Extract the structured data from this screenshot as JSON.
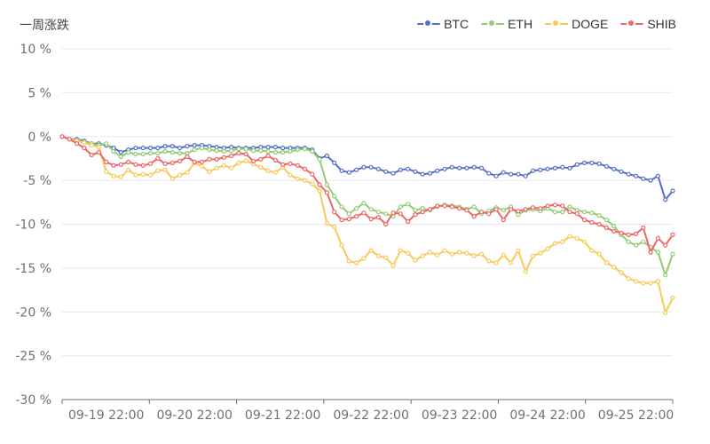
{
  "chart_data": {
    "type": "line",
    "title": "一周涨跌",
    "ylim": [
      -30,
      10
    ],
    "y_ticks": [
      "10 %",
      "5 %",
      "0 %",
      "-5 %",
      "-10 %",
      "-15 %",
      "-20 %",
      "-25 %",
      "-30 %"
    ],
    "y_tick_values": [
      10,
      5,
      0,
      -5,
      -10,
      -15,
      -20,
      -25,
      -30
    ],
    "x_tick_labels": [
      "09-19 22:00",
      "09-20 22:00",
      "09-21 22:00",
      "09-22 22:00",
      "09-23 22:00",
      "09-24 22:00",
      "09-25 22:00"
    ],
    "x_tick_index": [
      6,
      18,
      30,
      42,
      54,
      66,
      78
    ],
    "point_count": 84,
    "grid": true,
    "legend_position": "top-right",
    "series": [
      {
        "name": "BTC",
        "color": "#5470c6",
        "values": [
          0,
          -0.3,
          -0.3,
          -0.5,
          -0.8,
          -0.8,
          -1.0,
          -1.3,
          -1.8,
          -1.5,
          -1.3,
          -1.3,
          -1.3,
          -1.3,
          -1.1,
          -1.1,
          -1.3,
          -1.1,
          -1.0,
          -1.0,
          -1.1,
          -1.2,
          -1.3,
          -1.2,
          -1.3,
          -1.3,
          -1.3,
          -1.2,
          -1.2,
          -1.2,
          -1.3,
          -1.3,
          -1.3,
          -1.3,
          -1.5,
          -2.5,
          -2.2,
          -3.0,
          -3.9,
          -4.1,
          -3.8,
          -3.5,
          -3.5,
          -3.7,
          -4.0,
          -4.2,
          -3.8,
          -3.7,
          -4.0,
          -4.3,
          -4.2,
          -3.9,
          -3.7,
          -3.5,
          -3.6,
          -3.6,
          -3.5,
          -3.6,
          -4.2,
          -4.5,
          -4.1,
          -4.3,
          -4.3,
          -4.5,
          -3.9,
          -3.8,
          -3.7,
          -3.6,
          -3.5,
          -3.6,
          -3.2,
          -3.0,
          -3.0,
          -3.1,
          -3.4,
          -3.7,
          -4.0,
          -4.3,
          -4.5,
          -4.8,
          -5.0,
          -4.5,
          -7.2,
          -6.2
        ],
        "markers": [
          0,
          -0.3,
          -0.3,
          -0.5,
          -0.8,
          -0.8,
          -1.0,
          -1.3,
          -1.8,
          -1.5,
          -1.3,
          -1.3,
          -1.3,
          -1.3,
          -1.1,
          -1.1,
          -1.3,
          -1.1,
          -1.0,
          -1.0,
          -1.1,
          -1.2,
          -1.3,
          -1.2,
          -1.3,
          -1.3,
          -1.3,
          -1.2,
          -1.2,
          -1.2,
          -1.3,
          -1.3,
          -1.3,
          -1.3,
          -1.5,
          -2.5,
          -2.2,
          -3.0,
          -3.9,
          -4.1,
          -3.8,
          -3.5,
          -3.5,
          -3.7,
          -4.0,
          -4.2,
          -3.8,
          -3.7,
          -4.0,
          -4.3,
          -4.2,
          -3.9,
          -3.7,
          -3.5,
          -3.6,
          -3.6,
          -3.5,
          -3.6,
          -4.2,
          -4.5,
          -4.1,
          -4.3,
          -4.3,
          -4.5,
          -3.9,
          -3.8,
          -3.7,
          -3.6,
          -3.5,
          -3.6,
          -3.2,
          -3.0,
          -3.0,
          -3.1,
          -3.4,
          -3.7,
          -4.0,
          -4.3,
          -4.5,
          -4.8,
          -5.0,
          -4.5,
          -7.2,
          -6.2
        ]
      },
      {
        "name": "ETH",
        "color": "#91cc75",
        "values": [
          0,
          -0.3,
          -0.4,
          -0.6,
          -0.8,
          -1.0,
          -0.8,
          -1.7,
          -2.3,
          -1.8,
          -2.0,
          -2.0,
          -1.9,
          -1.9,
          -1.7,
          -1.8,
          -1.9,
          -1.9,
          -1.5,
          -1.3,
          -1.5,
          -1.6,
          -1.7,
          -1.6,
          -1.4,
          -1.4,
          -1.6,
          -1.6,
          -1.7,
          -1.8,
          -1.8,
          -1.7,
          -1.5,
          -1.4,
          -1.7,
          -2.6,
          -5.5,
          -6.8,
          -8.0,
          -8.8,
          -8.2,
          -7.6,
          -8.3,
          -8.6,
          -8.8,
          -9.1,
          -8.0,
          -7.7,
          -8.4,
          -8.2,
          -8.4,
          -8.0,
          -7.8,
          -7.9,
          -8.0,
          -8.3,
          -8.0,
          -8.8,
          -8.5,
          -8.1,
          -8.4,
          -8.0,
          -8.9,
          -8.4,
          -8.3,
          -8.5,
          -8.2,
          -8.6,
          -8.6,
          -8.0,
          -8.4,
          -8.6,
          -8.7,
          -9.0,
          -9.5,
          -10.2,
          -11.2,
          -12.0,
          -12.4,
          -12.0,
          -12.6,
          -13.2,
          -15.8,
          -13.4
        ],
        "markers": [
          0,
          -0.3,
          -0.4,
          -0.6,
          -0.8,
          -1.0,
          -0.8,
          -1.7,
          -2.3,
          -1.8,
          -2.0,
          -2.0,
          -1.9,
          -1.9,
          -1.7,
          -1.8,
          -1.9,
          -1.9,
          -1.5,
          -1.3,
          -1.5,
          -1.6,
          -1.7,
          -1.6,
          -1.4,
          -1.4,
          -1.6,
          -1.6,
          -1.7,
          -1.8,
          -1.8,
          -1.7,
          -1.5,
          -1.4,
          -1.7,
          -2.6,
          -5.5,
          -6.8,
          -8.0,
          -8.8,
          -8.2,
          -7.6,
          -8.3,
          -8.6,
          -8.8,
          -9.1,
          -8.0,
          -7.7,
          -8.4,
          -8.2,
          -8.4,
          -8.0,
          -7.8,
          -7.9,
          -8.0,
          -8.3,
          -8.0,
          -8.8,
          -8.5,
          -8.1,
          -8.4,
          -8.0,
          -8.9,
          -8.4,
          -8.3,
          -8.5,
          -8.2,
          -8.6,
          -8.6,
          -8.0,
          -8.4,
          -8.6,
          -8.7,
          -9.0,
          -9.5,
          -10.2,
          -11.2,
          -12.0,
          -12.4,
          -12.0,
          -12.6,
          -13.2,
          -15.8,
          -13.4
        ]
      },
      {
        "name": "DOGE",
        "color": "#fac858",
        "values": [
          0,
          -0.3,
          -0.5,
          -0.7,
          -1.0,
          -1.2,
          -4.0,
          -4.5,
          -4.6,
          -3.8,
          -4.4,
          -4.3,
          -4.4,
          -3.9,
          -3.8,
          -4.8,
          -4.4,
          -4.1,
          -3.0,
          -3.4,
          -4.0,
          -3.6,
          -3.3,
          -3.6,
          -3.0,
          -2.8,
          -3.1,
          -3.5,
          -3.9,
          -4.1,
          -3.5,
          -4.4,
          -4.8,
          -5.0,
          -5.4,
          -6.2,
          -9.9,
          -10.3,
          -12.4,
          -14.2,
          -14.4,
          -13.9,
          -13.0,
          -13.6,
          -13.8,
          -14.7,
          -13.0,
          -13.3,
          -14.1,
          -13.6,
          -13.2,
          -13.5,
          -13.0,
          -13.4,
          -13.2,
          -13.3,
          -13.6,
          -13.4,
          -14.2,
          -14.4,
          -13.5,
          -14.4,
          -13.0,
          -15.4,
          -13.6,
          -13.3,
          -12.8,
          -12.2,
          -12.0,
          -11.4,
          -11.6,
          -12.0,
          -13.0,
          -13.4,
          -14.4,
          -14.9,
          -15.5,
          -16.2,
          -16.5,
          -16.7,
          -16.7,
          -16.5,
          -20.1,
          -18.4
        ],
        "markers": [
          0,
          -0.3,
          -0.5,
          -0.7,
          -1.0,
          -1.2,
          -4.0,
          -4.5,
          -4.6,
          -3.8,
          -4.4,
          -4.3,
          -4.4,
          -3.9,
          -3.8,
          -4.8,
          -4.4,
          -4.1,
          -3.0,
          -3.4,
          -4.0,
          -3.6,
          -3.3,
          -3.6,
          -3.0,
          -2.8,
          -3.1,
          -3.5,
          -3.9,
          -4.1,
          -3.5,
          -4.4,
          -4.8,
          -5.0,
          -5.4,
          -6.2,
          -9.9,
          -10.3,
          -12.4,
          -14.2,
          -14.4,
          -13.9,
          -13.0,
          -13.6,
          -13.8,
          -14.7,
          -13.0,
          -13.3,
          -14.1,
          -13.6,
          -13.2,
          -13.5,
          -13.0,
          -13.4,
          -13.2,
          -13.3,
          -13.6,
          -13.4,
          -14.2,
          -14.4,
          -13.5,
          -14.4,
          -13.0,
          -15.4,
          -13.6,
          -13.3,
          -12.8,
          -12.2,
          -12.0,
          -11.4,
          -11.6,
          -12.0,
          -13.0,
          -13.4,
          -14.4,
          -14.9,
          -15.5,
          -16.2,
          -16.5,
          -16.7,
          -16.7,
          -16.5,
          -20.1,
          -18.4
        ]
      },
      {
        "name": "SHIB",
        "color": "#ee6666",
        "values": [
          0,
          -0.3,
          -0.8,
          -1.3,
          -2.1,
          -1.8,
          -2.9,
          -3.3,
          -3.2,
          -2.9,
          -3.2,
          -3.3,
          -3.1,
          -2.5,
          -3.1,
          -3.0,
          -2.8,
          -2.3,
          -2.9,
          -2.9,
          -2.6,
          -2.6,
          -2.4,
          -2.2,
          -1.9,
          -2.0,
          -2.8,
          -2.6,
          -2.2,
          -2.7,
          -3.2,
          -3.1,
          -3.3,
          -3.7,
          -4.3,
          -5.5,
          -6.4,
          -8.6,
          -9.5,
          -9.4,
          -9.1,
          -8.7,
          -9.4,
          -9.2,
          -10.0,
          -8.7,
          -8.8,
          -9.7,
          -8.9,
          -8.6,
          -8.3,
          -7.9,
          -7.9,
          -8.0,
          -8.2,
          -8.4,
          -9.1,
          -8.6,
          -8.8,
          -8.3,
          -9.5,
          -8.3,
          -8.5,
          -8.3,
          -8.1,
          -8.2,
          -7.9,
          -7.8,
          -7.9,
          -8.6,
          -8.8,
          -9.5,
          -9.8,
          -10.0,
          -10.4,
          -10.8,
          -11.0,
          -11.2,
          -11.1,
          -10.4,
          -13.2,
          -11.6,
          -12.4,
          -11.2
        ],
        "markers": [
          0,
          -0.3,
          -0.8,
          -1.3,
          -2.1,
          -1.8,
          -2.9,
          -3.3,
          -3.2,
          -2.9,
          -3.2,
          -3.3,
          -3.1,
          -2.5,
          -3.1,
          -3.0,
          -2.8,
          -2.3,
          -2.9,
          -2.9,
          -2.6,
          -2.6,
          -2.4,
          -2.2,
          -1.9,
          -2.0,
          -2.8,
          -2.6,
          -2.2,
          -2.7,
          -3.2,
          -3.1,
          -3.3,
          -3.7,
          -4.3,
          -5.5,
          -6.4,
          -8.6,
          -9.5,
          -9.4,
          -9.1,
          -8.7,
          -9.4,
          -9.2,
          -10.0,
          -8.7,
          -8.8,
          -9.7,
          -8.9,
          -8.6,
          -8.3,
          -7.9,
          -7.9,
          -8.0,
          -8.2,
          -8.4,
          -9.1,
          -8.6,
          -8.8,
          -8.3,
          -9.5,
          -8.3,
          -8.5,
          -8.3,
          -8.1,
          -8.2,
          -7.9,
          -7.8,
          -7.9,
          -8.6,
          -8.8,
          -9.5,
          -9.8,
          -10.0,
          -10.4,
          -10.8,
          -11.0,
          -11.2,
          -11.1,
          -10.4,
          -13.2,
          -11.6,
          -12.4,
          -11.2
        ]
      }
    ]
  }
}
